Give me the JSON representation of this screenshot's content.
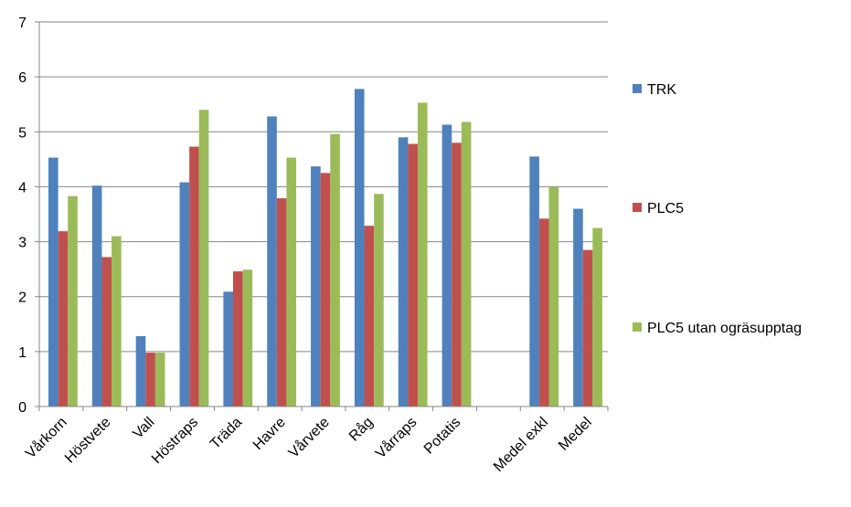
{
  "chart_data": {
    "type": "bar",
    "title": "",
    "xlabel": "",
    "ylabel": "",
    "ylim": [
      0,
      7
    ],
    "yticks": [
      0,
      1,
      2,
      3,
      4,
      5,
      6,
      7
    ],
    "grid": true,
    "legend_position": "right",
    "categories": [
      "Vårkorn",
      "Höstvete",
      "Vall",
      "Höstraps",
      "Träda",
      "Havre",
      "Vårvete",
      "Råg",
      "Vårraps",
      "Potatis",
      "",
      "Medel exkl",
      "Medel"
    ],
    "series": [
      {
        "name": "TRK",
        "color": "#4F81BD",
        "values": [
          4.53,
          4.02,
          1.28,
          4.08,
          2.09,
          5.28,
          4.37,
          5.78,
          4.9,
          5.13,
          null,
          4.55,
          3.6
        ]
      },
      {
        "name": "PLC5",
        "color": "#C0504D",
        "values": [
          3.19,
          2.72,
          0.98,
          4.73,
          2.46,
          3.79,
          4.25,
          3.29,
          4.78,
          4.8,
          null,
          3.42,
          2.85
        ]
      },
      {
        "name": "PLC5 utan ogräsupptag",
        "color": "#9BBB59",
        "values": [
          3.83,
          3.1,
          0.98,
          5.4,
          2.49,
          4.53,
          4.96,
          3.87,
          5.53,
          5.18,
          null,
          4.0,
          3.25
        ]
      }
    ]
  }
}
